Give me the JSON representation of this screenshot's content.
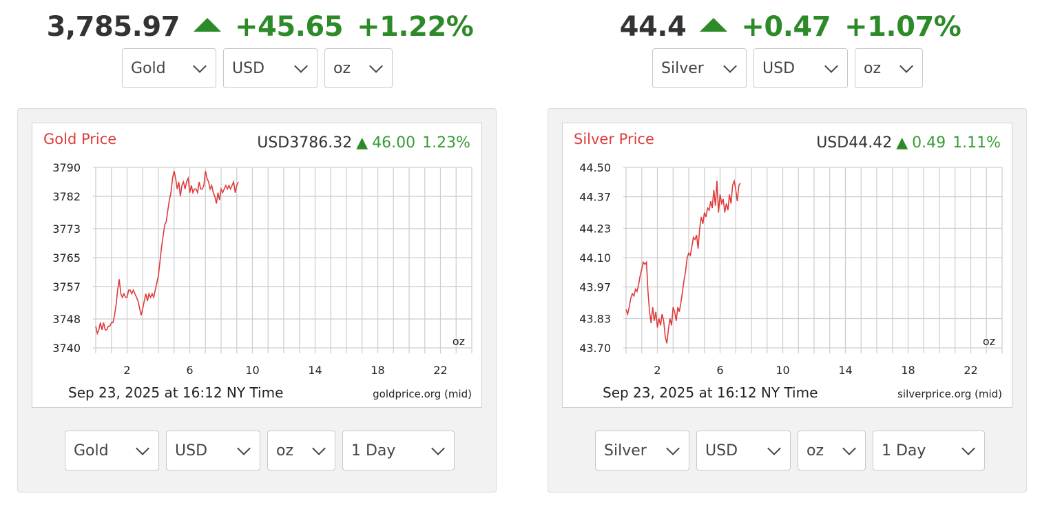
{
  "gold": {
    "ticker": {
      "price": "3,785.97",
      "change": "+45.65",
      "percent": "+1.22%"
    },
    "top_selects": {
      "metal": "Gold",
      "currency": "USD",
      "unit": "oz"
    },
    "chart": {
      "title": "Gold Price",
      "quote_price": "USD3786.32",
      "quote_change": "46.00",
      "quote_percent": "1.23%",
      "timestamp": "Sep 23, 2025 at 16:12 NY Time",
      "source": "goldprice.org (mid)",
      "unit_label": "oz"
    },
    "bottom_selects": {
      "metal": "Gold",
      "currency": "USD",
      "unit": "oz",
      "range": "1 Day"
    }
  },
  "silver": {
    "ticker": {
      "price": "44.4",
      "change": "+0.47",
      "percent": "+1.07%"
    },
    "top_selects": {
      "metal": "Silver",
      "currency": "USD",
      "unit": "oz"
    },
    "chart": {
      "title": "Silver Price",
      "quote_price": "USD44.42",
      "quote_change": "0.49",
      "quote_percent": "1.11%",
      "timestamp": "Sep 23, 2025 at 16:12 NY Time",
      "source": "silverprice.org (mid)",
      "unit_label": "oz"
    },
    "bottom_selects": {
      "metal": "Silver",
      "currency": "USD",
      "unit": "oz",
      "range": "1 Day"
    }
  },
  "colors": {
    "up": "#2d8a28",
    "line": "#e03b3b",
    "title": "#e03b3b",
    "grid": "#cfcfcf"
  },
  "icons": {
    "up": "triangle-up-icon",
    "dropdown": "chevron-down-icon"
  },
  "chart_data": [
    {
      "type": "line",
      "title": "Gold Price",
      "xlabel": "",
      "ylabel": "",
      "x_ticks": [
        2,
        6,
        10,
        14,
        18,
        22
      ],
      "xlim": [
        0,
        24
      ],
      "y_ticks": [
        "3740",
        "3748",
        "3757",
        "3765",
        "3773",
        "3782",
        "3790"
      ],
      "ylim": [
        3740,
        3790
      ],
      "grid": true,
      "series": [
        {
          "values": [
            [
              0.0,
              3746
            ],
            [
              0.1,
              3744
            ],
            [
              0.2,
              3745
            ],
            [
              0.3,
              3747
            ],
            [
              0.4,
              3745
            ],
            [
              0.5,
              3747
            ],
            [
              0.6,
              3745
            ],
            [
              0.7,
              3745
            ],
            [
              0.8,
              3746
            ],
            [
              0.9,
              3746
            ],
            [
              1.0,
              3747
            ],
            [
              1.1,
              3747
            ],
            [
              1.2,
              3749
            ],
            [
              1.3,
              3752
            ],
            [
              1.4,
              3756
            ],
            [
              1.5,
              3759
            ],
            [
              1.6,
              3755
            ],
            [
              1.7,
              3754
            ],
            [
              1.8,
              3755
            ],
            [
              1.9,
              3754
            ],
            [
              2.0,
              3754
            ],
            [
              2.1,
              3756
            ],
            [
              2.2,
              3756
            ],
            [
              2.3,
              3755
            ],
            [
              2.4,
              3756
            ],
            [
              2.5,
              3755
            ],
            [
              2.6,
              3754
            ],
            [
              2.7,
              3753
            ],
            [
              2.8,
              3751
            ],
            [
              2.9,
              3749
            ],
            [
              3.0,
              3751
            ],
            [
              3.1,
              3753
            ],
            [
              3.2,
              3755
            ],
            [
              3.3,
              3753
            ],
            [
              3.4,
              3755
            ],
            [
              3.5,
              3754
            ],
            [
              3.6,
              3755
            ],
            [
              3.7,
              3754
            ],
            [
              3.8,
              3756
            ],
            [
              3.9,
              3758
            ],
            [
              4.0,
              3760
            ],
            [
              4.1,
              3764
            ],
            [
              4.2,
              3768
            ],
            [
              4.3,
              3771
            ],
            [
              4.4,
              3774
            ],
            [
              4.5,
              3775
            ],
            [
              4.6,
              3778
            ],
            [
              4.7,
              3781
            ],
            [
              4.8,
              3783
            ],
            [
              4.9,
              3787
            ],
            [
              5.0,
              3789
            ],
            [
              5.1,
              3787
            ],
            [
              5.2,
              3784
            ],
            [
              5.3,
              3786
            ],
            [
              5.4,
              3782
            ],
            [
              5.5,
              3785
            ],
            [
              5.6,
              3786
            ],
            [
              5.7,
              3784
            ],
            [
              5.8,
              3786
            ],
            [
              5.9,
              3787
            ],
            [
              6.0,
              3783
            ],
            [
              6.1,
              3785
            ],
            [
              6.2,
              3783
            ],
            [
              6.3,
              3784
            ],
            [
              6.4,
              3784
            ],
            [
              6.5,
              3783
            ],
            [
              6.6,
              3786
            ],
            [
              6.7,
              3784
            ],
            [
              6.8,
              3784
            ],
            [
              6.9,
              3785
            ],
            [
              7.0,
              3789
            ],
            [
              7.1,
              3787
            ],
            [
              7.2,
              3786
            ],
            [
              7.3,
              3784
            ],
            [
              7.4,
              3785
            ],
            [
              7.5,
              3783
            ],
            [
              7.6,
              3782
            ],
            [
              7.7,
              3780
            ],
            [
              7.8,
              3783
            ],
            [
              7.9,
              3781
            ],
            [
              8.0,
              3784
            ],
            [
              8.1,
              3783
            ],
            [
              8.2,
              3784
            ],
            [
              8.3,
              3785
            ],
            [
              8.4,
              3784
            ],
            [
              8.5,
              3785
            ],
            [
              8.6,
              3784
            ],
            [
              8.7,
              3785
            ],
            [
              8.8,
              3786
            ],
            [
              8.9,
              3783
            ],
            [
              9.0,
              3785
            ],
            [
              9.1,
              3786
            ]
          ]
        }
      ]
    },
    {
      "type": "line",
      "title": "Silver Price",
      "xlabel": "",
      "ylabel": "",
      "x_ticks": [
        2,
        6,
        10,
        14,
        18,
        22
      ],
      "xlim": [
        0,
        24
      ],
      "y_ticks": [
        "43.70",
        "43.83",
        "43.97",
        "44.10",
        "44.23",
        "44.37",
        "44.50"
      ],
      "ylim": [
        43.7,
        44.5
      ],
      "grid": true,
      "series": [
        {
          "values": [
            [
              0.0,
              43.87
            ],
            [
              0.1,
              43.85
            ],
            [
              0.2,
              43.88
            ],
            [
              0.3,
              43.92
            ],
            [
              0.4,
              43.94
            ],
            [
              0.5,
              43.93
            ],
            [
              0.6,
              43.96
            ],
            [
              0.7,
              43.95
            ],
            [
              0.8,
              43.98
            ],
            [
              0.9,
              44.02
            ],
            [
              1.0,
              44.05
            ],
            [
              1.1,
              44.08
            ],
            [
              1.2,
              44.07
            ],
            [
              1.3,
              44.08
            ],
            [
              1.4,
              43.95
            ],
            [
              1.5,
              43.86
            ],
            [
              1.6,
              43.81
            ],
            [
              1.7,
              43.88
            ],
            [
              1.8,
              43.82
            ],
            [
              1.9,
              43.86
            ],
            [
              2.0,
              43.79
            ],
            [
              2.1,
              43.83
            ],
            [
              2.2,
              43.8
            ],
            [
              2.3,
              43.85
            ],
            [
              2.4,
              43.82
            ],
            [
              2.5,
              43.75
            ],
            [
              2.6,
              43.72
            ],
            [
              2.7,
              43.78
            ],
            [
              2.8,
              43.83
            ],
            [
              2.9,
              43.8
            ],
            [
              3.0,
              43.88
            ],
            [
              3.1,
              43.86
            ],
            [
              3.2,
              43.82
            ],
            [
              3.3,
              43.88
            ],
            [
              3.4,
              43.86
            ],
            [
              3.5,
              43.9
            ],
            [
              3.6,
              43.95
            ],
            [
              3.7,
              44.0
            ],
            [
              3.8,
              44.04
            ],
            [
              3.9,
              44.1
            ],
            [
              4.0,
              44.12
            ],
            [
              4.1,
              44.11
            ],
            [
              4.2,
              44.15
            ],
            [
              4.3,
              44.19
            ],
            [
              4.4,
              44.18
            ],
            [
              4.5,
              44.2
            ],
            [
              4.6,
              44.14
            ],
            [
              4.7,
              44.23
            ],
            [
              4.8,
              44.28
            ],
            [
              4.9,
              44.25
            ],
            [
              5.0,
              44.3
            ],
            [
              5.1,
              44.28
            ],
            [
              5.2,
              44.32
            ],
            [
              5.3,
              44.31
            ],
            [
              5.4,
              44.35
            ],
            [
              5.5,
              44.32
            ],
            [
              5.6,
              44.4
            ],
            [
              5.7,
              44.33
            ],
            [
              5.8,
              44.44
            ],
            [
              5.9,
              44.3
            ],
            [
              6.0,
              44.38
            ],
            [
              6.1,
              44.34
            ],
            [
              6.2,
              44.36
            ],
            [
              6.3,
              44.3
            ],
            [
              6.4,
              44.34
            ],
            [
              6.5,
              44.31
            ],
            [
              6.6,
              44.38
            ],
            [
              6.7,
              44.34
            ],
            [
              6.8,
              44.42
            ],
            [
              6.9,
              44.44
            ],
            [
              7.0,
              44.4
            ],
            [
              7.1,
              44.35
            ],
            [
              7.2,
              44.42
            ],
            [
              7.3,
              44.43
            ]
          ]
        }
      ]
    }
  ]
}
